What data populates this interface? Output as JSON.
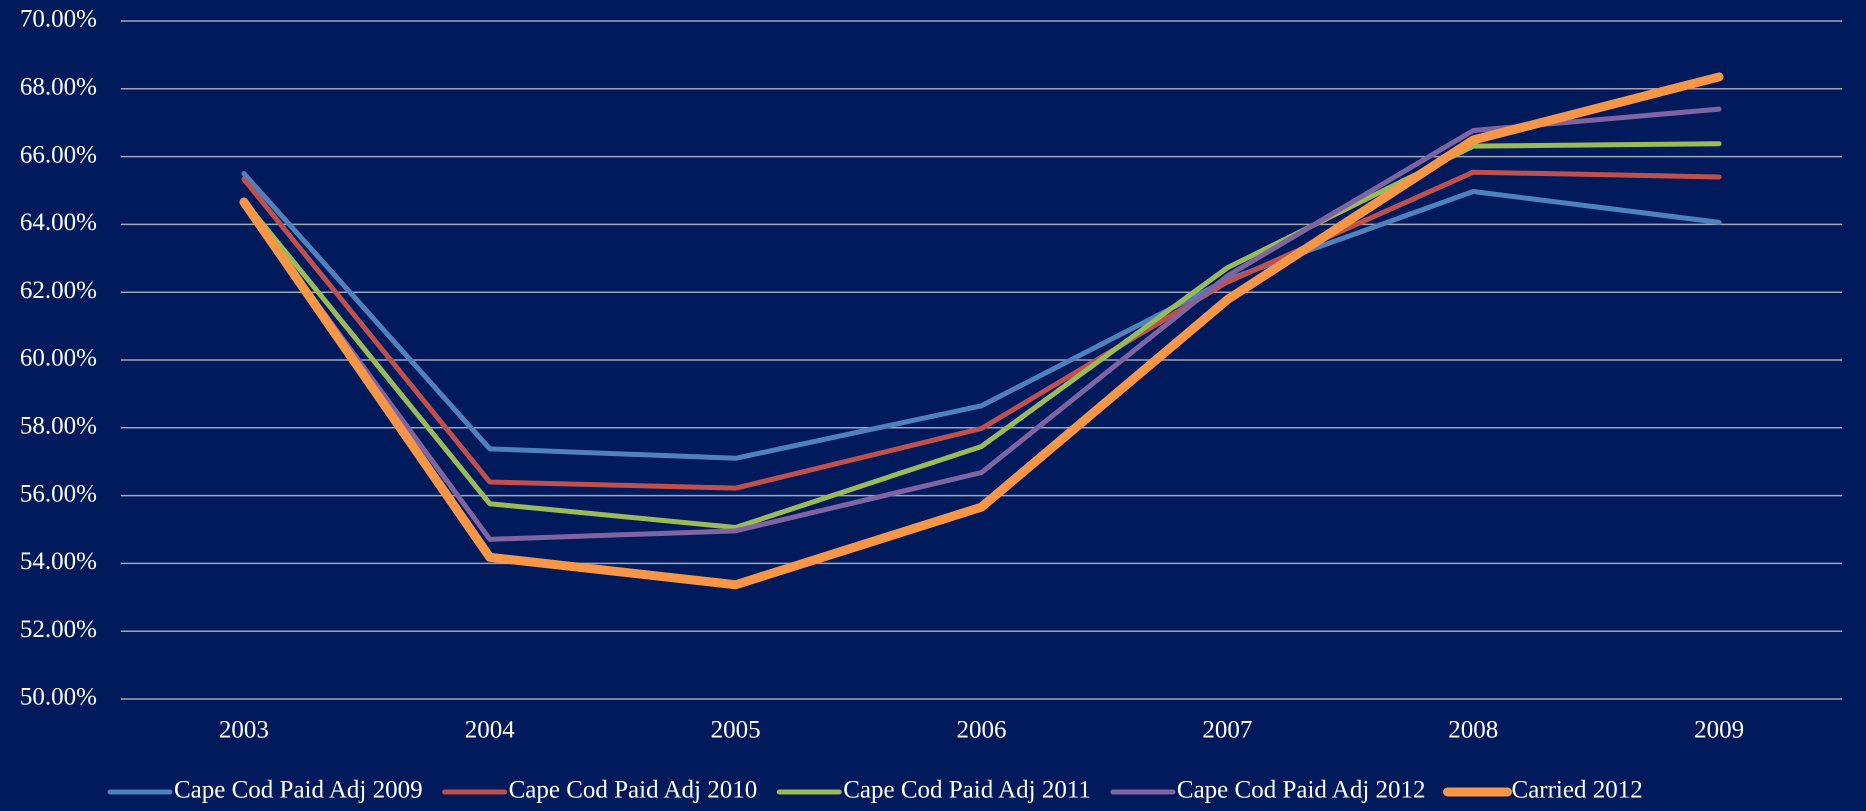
{
  "chart_data": {
    "type": "line",
    "categories": [
      "2003",
      "2004",
      "2005",
      "2006",
      "2007",
      "2008",
      "2009"
    ],
    "series": [
      {
        "name": "Cape Cod Paid Adj 2009",
        "color": "#4f81bd",
        "line_width": 5,
        "values": [
          65.5,
          57.38,
          57.1,
          58.65,
          62.37,
          64.97,
          64.06
        ]
      },
      {
        "name": "Cape Cod Paid Adj 2010",
        "color": "#c0504d",
        "line_width": 5,
        "values": [
          65.33,
          56.4,
          56.22,
          57.98,
          62.3,
          65.54,
          65.4
        ]
      },
      {
        "name": "Cape Cod Paid Adj 2011",
        "color": "#9bbb59",
        "line_width": 5,
        "values": [
          64.7,
          55.76,
          55.06,
          57.45,
          62.72,
          66.31,
          66.38
        ]
      },
      {
        "name": "Cape Cod Paid Adj 2012",
        "color": "#8064a2",
        "line_width": 5,
        "values": [
          64.6,
          54.71,
          54.96,
          56.68,
          62.48,
          66.77,
          67.4
        ]
      },
      {
        "name": "Carried 2012",
        "color": "#f79646",
        "line_width": 9,
        "values": [
          64.66,
          54.18,
          53.37,
          55.66,
          61.78,
          66.49,
          68.35
        ]
      }
    ],
    "ylim": [
      50,
      70
    ],
    "yticks": [
      {
        "value": 50,
        "label": "50.00%"
      },
      {
        "value": 52,
        "label": "52.00%"
      },
      {
        "value": 54,
        "label": "54.00%"
      },
      {
        "value": 56,
        "label": "56.00%"
      },
      {
        "value": 58,
        "label": "58.00%"
      },
      {
        "value": 60,
        "label": "60.00%"
      },
      {
        "value": 62,
        "label": "62.00%"
      },
      {
        "value": 64,
        "label": "64.00%"
      },
      {
        "value": 66,
        "label": "66.00%"
      },
      {
        "value": 68,
        "label": "68.00%"
      },
      {
        "value": 70,
        "label": "70.00%"
      }
    ],
    "grid": true,
    "legend": "bottom"
  }
}
